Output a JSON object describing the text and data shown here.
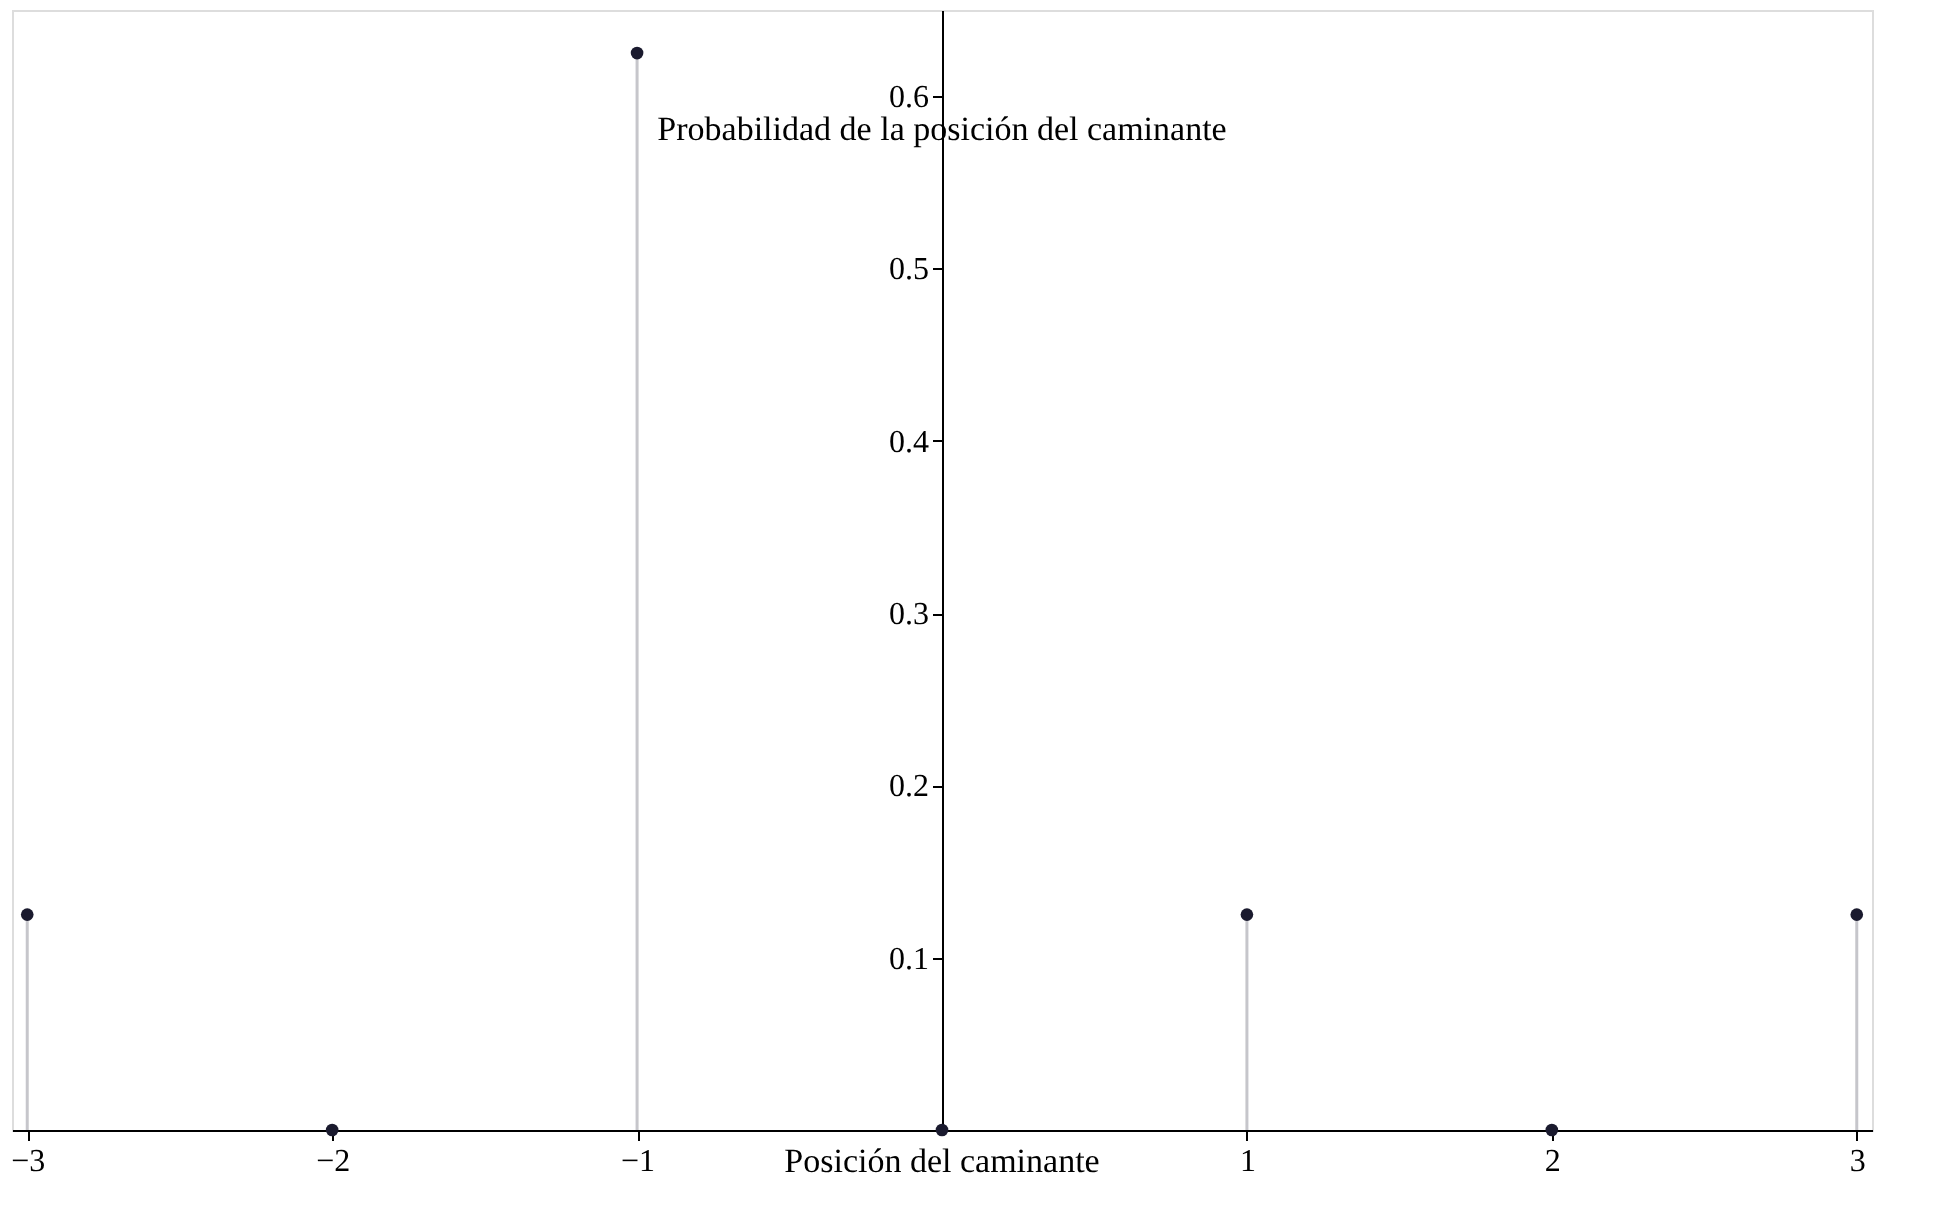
{
  "chart_data": {
    "type": "lollipop",
    "x": [
      -3,
      -2,
      -1,
      0,
      1,
      2,
      3
    ],
    "series": [
      {
        "color": "#1a1a2e",
        "values": [
          0.125,
          0,
          0.625,
          0,
          0.125,
          0,
          0.125
        ]
      }
    ],
    "xlabel": "Posición del caminante",
    "ylabel": "Probabilidad de la posición del caminante",
    "xlim": [
      -3.05,
      3.05
    ],
    "ylim": [
      0,
      0.65
    ],
    "xticks": [
      -3,
      -2,
      -1,
      1,
      2,
      3
    ],
    "yticks": [
      0.1,
      0.2,
      0.3,
      0.4,
      0.5,
      0.6
    ],
    "marker": "circle"
  }
}
